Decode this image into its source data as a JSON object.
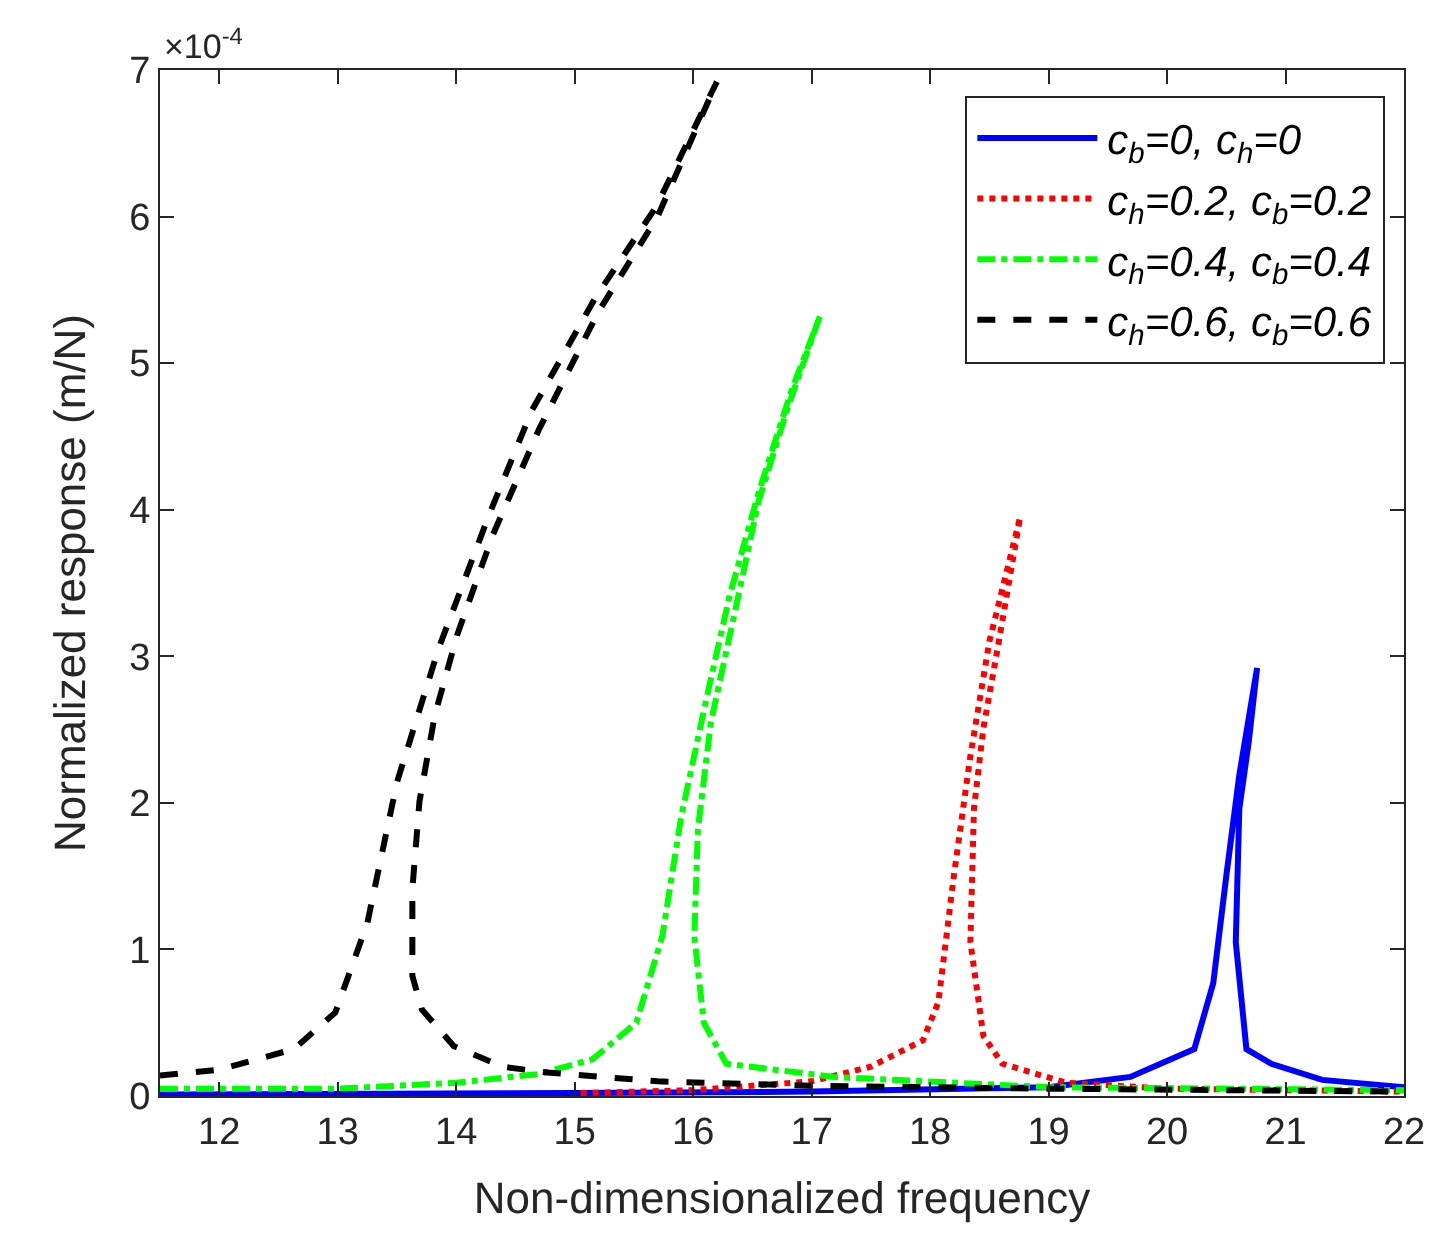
{
  "chart_data": {
    "type": "line",
    "xlabel": "Non-dimensionalized frequency",
    "ylabel": "Normalized response (m/N)",
    "annotations": [
      "×10$^{-4}$"
    ],
    "xlim": [
      11.5,
      22
    ],
    "xticks": [
      12,
      13,
      14,
      15,
      16,
      17,
      18,
      19,
      20,
      21,
      22
    ],
    "ylim": [
      0,
      7
    ],
    "yticks": [
      0,
      1,
      2,
      3,
      4,
      5,
      6,
      7
    ],
    "grid": false,
    "legend": "top right",
    "marker": "none",
    "series": [
      {
        "name": "c$_{b}$=0, c$_{h}$=0",
        "color": "#0000ff",
        "line_style": "solid",
        "x": [
          11.5,
          15,
          17,
          19,
          19.69,
          20.23,
          20.39,
          20.5,
          20.61,
          20.76,
          20.69,
          20.61,
          20.58,
          20.67,
          20.88,
          21.31,
          22
        ],
        "values": [
          0.01,
          0.02,
          0.03,
          0.06,
          0.13,
          0.32,
          0.77,
          1.5,
          2.19,
          2.92,
          2.42,
          1.96,
          1.05,
          0.32,
          0.22,
          0.11,
          0.06
        ]
      },
      {
        "name": "c$_{h}$=0.2, c$_{b}$=0.2",
        "color": "#ff0000",
        "line_style": "dotted",
        "x": [
          15.05,
          16,
          17,
          17.5,
          17.94,
          18.07,
          18.2,
          18.34,
          18.5,
          18.76,
          18.58,
          18.45,
          18.37,
          18.34,
          18.45,
          18.61,
          19.15,
          20,
          22
        ],
        "values": [
          0.02,
          0.04,
          0.1,
          0.2,
          0.38,
          0.64,
          1.5,
          2.32,
          3.1,
          3.95,
          3.1,
          2.51,
          1.96,
          1.05,
          0.41,
          0.22,
          0.09,
          0.05,
          0.03
        ]
      },
      {
        "name": "c$_{h}$=0.4, c$_{b}$=0.4",
        "color": "#00ff00",
        "line_style": "dashdot",
        "x": [
          11.5,
          13,
          14,
          14.7,
          15.15,
          15.52,
          15.74,
          15.9,
          16.12,
          16.31,
          16.55,
          16.82,
          17.07,
          16.8,
          16.55,
          16.36,
          16.15,
          16.04,
          16.01,
          16.09,
          16.28,
          17.19,
          19,
          22
        ],
        "values": [
          0.05,
          0.05,
          0.09,
          0.15,
          0.25,
          0.5,
          1.09,
          1.91,
          2.74,
          3.42,
          4.11,
          4.79,
          5.32,
          4.7,
          4.05,
          3.33,
          2.55,
          1.82,
          1.09,
          0.5,
          0.22,
          0.13,
          0.06,
          0.04
        ]
      },
      {
        "name": "c$_{h}$=0.6, c$_{b}$=0.6",
        "color": "#000000",
        "line_style": "dashed",
        "x": [
          11.5,
          12,
          12.63,
          12.98,
          13.25,
          13.5,
          13.85,
          14.28,
          14.64,
          15.17,
          15.69,
          16.2,
          15.7,
          15.2,
          14.7,
          14.31,
          14.01,
          13.82,
          13.69,
          13.63,
          13.63,
          13.71,
          13.98,
          14.39,
          14.77,
          15.7,
          17,
          19,
          22
        ],
        "values": [
          0.14,
          0.18,
          0.32,
          0.57,
          1.18,
          2.14,
          3.05,
          3.97,
          4.68,
          5.44,
          6.07,
          6.92,
          6.0,
          5.35,
          4.55,
          3.83,
          3.15,
          2.6,
          2.01,
          1.41,
          0.82,
          0.59,
          0.34,
          0.2,
          0.16,
          0.1,
          0.07,
          0.05,
          0.03
        ]
      }
    ]
  }
}
